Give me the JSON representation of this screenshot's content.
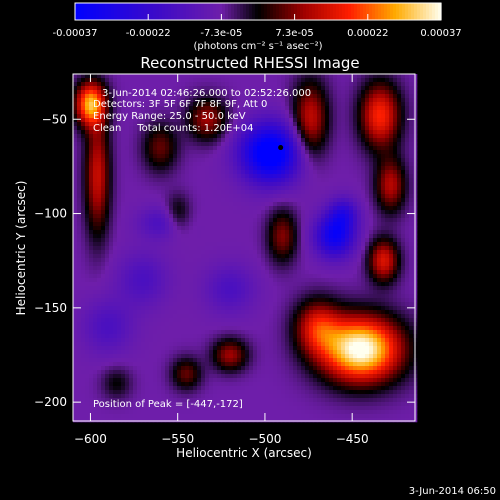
{
  "chart_data": {
    "type": "heatmap",
    "title": "Reconstructed RHESSI Image",
    "xlabel": "Heliocentric X (arcsec)",
    "ylabel": "Heliocentric Y (arcsec)",
    "xlim": [
      -610,
      -414
    ],
    "ylim": [
      -210,
      -26
    ],
    "xticks": [
      -600,
      -550,
      -500,
      -450
    ],
    "yticks": [
      -50,
      -100,
      -150,
      -200
    ],
    "colorbar": {
      "ticks": [
        "-0.00037",
        "-0.00022",
        "-7.3e-05",
        "7.3e-05",
        "0.00022",
        "0.00037"
      ],
      "unit_label": "(photons cm⁻² s⁻¹ asec⁻²)",
      "range": [
        -0.00037,
        0.00037
      ]
    },
    "info_lines": [
      "3-Jun-2014 02:46:26.000 to 02:52:26.000",
      "Detectors: 3F 5F 6F 7F 8F 9F, Att 0",
      "Energy Range: 25.0 - 50.0 keV",
      "Clean     Total counts: 1.20E+04"
    ],
    "peak": {
      "label": "Position of Peak = [-447,-172]",
      "x": -447,
      "y": -172
    },
    "marker": {
      "x": -491,
      "y": -65
    },
    "blobs": [
      {
        "x": -445,
        "y": -172,
        "sx": 16,
        "sy": 12,
        "a": 1.25
      },
      {
        "x": -470,
        "y": -160,
        "sx": 9,
        "sy": 10,
        "a": 0.55
      },
      {
        "x": -600,
        "y": -42,
        "sx": 6,
        "sy": 8,
        "a": 0.95
      },
      {
        "x": -596,
        "y": -80,
        "sx": 5,
        "sy": 22,
        "a": 0.55
      },
      {
        "x": -560,
        "y": -65,
        "sx": 7,
        "sy": 9,
        "a": 0.35
      },
      {
        "x": -533,
        "y": -50,
        "sx": 8,
        "sy": 8,
        "a": 0.45
      },
      {
        "x": -474,
        "y": -50,
        "sx": 7,
        "sy": 14,
        "a": 0.55
      },
      {
        "x": -434,
        "y": -48,
        "sx": 8,
        "sy": 12,
        "a": 0.7
      },
      {
        "x": -428,
        "y": -85,
        "sx": 6,
        "sy": 10,
        "a": 0.5
      },
      {
        "x": -432,
        "y": -125,
        "sx": 6,
        "sy": 8,
        "a": 0.6
      },
      {
        "x": -490,
        "y": -112,
        "sx": 6,
        "sy": 10,
        "a": 0.4
      },
      {
        "x": -550,
        "y": -100,
        "sx": 5,
        "sy": 7,
        "a": 0.25
      },
      {
        "x": -520,
        "y": -175,
        "sx": 7,
        "sy": 6,
        "a": 0.45
      },
      {
        "x": -545,
        "y": -185,
        "sx": 6,
        "sy": 6,
        "a": 0.35
      },
      {
        "x": -585,
        "y": -190,
        "sx": 6,
        "sy": 6,
        "a": 0.2
      },
      {
        "x": -497,
        "y": -68,
        "sx": 12,
        "sy": 11,
        "a": -0.95
      },
      {
        "x": -460,
        "y": -112,
        "sx": 8,
        "sy": 8,
        "a": -0.7
      },
      {
        "x": -455,
        "y": -100,
        "sx": 6,
        "sy": 6,
        "a": -0.4
      },
      {
        "x": -560,
        "y": -105,
        "sx": 9,
        "sy": 6,
        "a": -0.25
      },
      {
        "x": -570,
        "y": -135,
        "sx": 10,
        "sy": 10,
        "a": -0.25
      },
      {
        "x": -520,
        "y": -140,
        "sx": 10,
        "sy": 9,
        "a": -0.25
      },
      {
        "x": -590,
        "y": -160,
        "sx": 10,
        "sy": 10,
        "a": -0.25
      }
    ],
    "base_level": -0.2
  },
  "footer": {
    "date": "3-Jun-2014 06:50"
  },
  "colors": {
    "background": "#000000",
    "foreground": "#ffffff",
    "marker": "#000000"
  }
}
